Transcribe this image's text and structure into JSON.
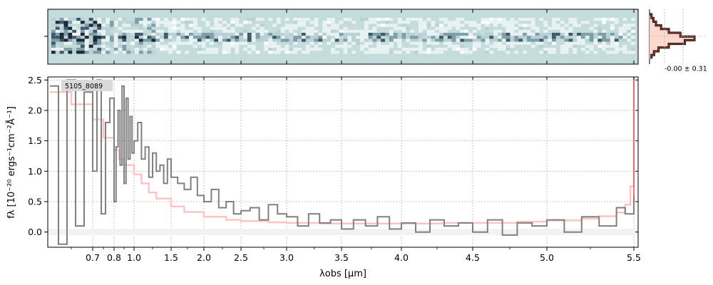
{
  "chart_data": [
    {
      "type": "heatmap",
      "panel": "2D spectrum",
      "colormap": "white-to-dark-slate (diverging teal/navy)",
      "background_color": "#c5dcdc"
    },
    {
      "type": "line",
      "panel": "1D spectrum",
      "annotation": "5105_8089",
      "xlabel": "λobs [μm]",
      "ylabel": "fλ [10⁻²⁰ ergs⁻¹cm⁻²Å⁻¹]",
      "ylim": [
        -0.25,
        2.55
      ],
      "x_ticks": [
        "0.7",
        "0.8",
        "1.0",
        "1.5",
        "2.0",
        "2.5",
        "3.0",
        "3.5",
        "4.0",
        "4.5",
        "5.0",
        "5.5"
      ],
      "y_ticks": [
        "0.0",
        "0.5",
        "1.0",
        "1.5",
        "2.0",
        "2.5"
      ],
      "grid": true,
      "series": [
        {
          "color": "#808080",
          "x": [
            0.6,
            0.62,
            0.64,
            0.66,
            0.68,
            0.7,
            0.72,
            0.74,
            0.76,
            0.78,
            0.8,
            0.82,
            0.84,
            0.86,
            0.88,
            0.9,
            0.92,
            0.94,
            0.96,
            0.98,
            1.0,
            1.05,
            1.1,
            1.15,
            1.2,
            1.25,
            1.3,
            1.35,
            1.4,
            1.45,
            1.5,
            1.6,
            1.7,
            1.8,
            1.9,
            2.0,
            2.1,
            2.2,
            2.3,
            2.4,
            2.5,
            2.6,
            2.7,
            2.8,
            2.9,
            3.0,
            3.1,
            3.2,
            3.3,
            3.4,
            3.5,
            3.6,
            3.7,
            3.8,
            3.9,
            4.0,
            4.1,
            4.2,
            4.3,
            4.4,
            4.5,
            4.6,
            4.7,
            4.8,
            4.9,
            5.0,
            5.1,
            5.2,
            5.3,
            5.4,
            5.45,
            5.5
          ],
          "y": [
            2.4,
            -0.2,
            2.5,
            0.1,
            2.3,
            1.0,
            2.5,
            0.3,
            1.8,
            2.2,
            0.5,
            1.4,
            2.0,
            1.1,
            2.4,
            0.8,
            2.2,
            1.2,
            1.9,
            1.3,
            1.5,
            1.8,
            1.2,
            1.4,
            0.9,
            1.3,
            1.0,
            1.1,
            0.8,
            1.2,
            0.9,
            0.8,
            0.7,
            0.9,
            0.6,
            0.5,
            0.7,
            0.4,
            0.5,
            0.3,
            0.35,
            0.4,
            0.2,
            0.45,
            0.3,
            0.25,
            0.1,
            0.3,
            0.15,
            0.2,
            0.05,
            0.2,
            0.1,
            0.25,
            0.05,
            0.15,
            0.0,
            0.2,
            0.1,
            0.15,
            0.0,
            0.2,
            -0.05,
            0.15,
            0.1,
            0.2,
            0.0,
            0.25,
            0.1,
            0.4,
            0.3,
            0.6
          ]
        },
        {
          "color": "#fcc4c4",
          "x": [
            0.6,
            0.65,
            0.7,
            0.75,
            0.8,
            0.85,
            0.9,
            1.0,
            1.1,
            1.2,
            1.3,
            1.5,
            1.7,
            2.0,
            2.3,
            2.5,
            2.8,
            3.0,
            3.3,
            3.5,
            3.8,
            4.0,
            4.3,
            4.5,
            4.8,
            5.0,
            5.2,
            5.3,
            5.4,
            5.45,
            5.48,
            5.5
          ],
          "y": [
            2.3,
            2.1,
            1.85,
            1.55,
            1.35,
            1.2,
            1.1,
            0.95,
            0.8,
            0.65,
            0.55,
            0.42,
            0.33,
            0.25,
            0.2,
            0.18,
            0.16,
            0.15,
            0.14,
            0.14,
            0.14,
            0.14,
            0.15,
            0.15,
            0.17,
            0.19,
            0.22,
            0.26,
            0.32,
            0.45,
            0.75,
            2.5
          ]
        }
      ]
    },
    {
      "type": "bar",
      "panel": "Flux histogram",
      "annotation": "-0.00 ± 0.31"
    }
  ]
}
